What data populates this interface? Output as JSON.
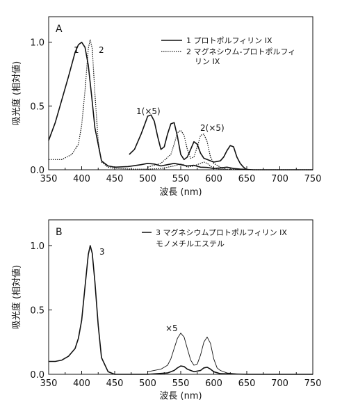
{
  "chart_data": [
    {
      "panel": "A",
      "type": "line",
      "xlabel": "波長 (nm)",
      "ylabel": "吸光度 (相対値)",
      "xlim": [
        350,
        750
      ],
      "ylim": [
        0,
        1.2
      ],
      "xticks": [
        "350",
        "400",
        "450",
        "500",
        "550",
        "600",
        "650",
        "700",
        "750"
      ],
      "yticks": [
        "0.0",
        "0.5",
        "1.0"
      ],
      "legend_position": "top-right",
      "legend": [
        "1 プロトポルフィリン IX",
        "2 マグネシウム-プロトポルフィリン IX"
      ],
      "series": [
        {
          "name": "1 プロトポルフィリン IX",
          "style": "solid",
          "x": [
            350,
            360,
            370,
            380,
            390,
            395,
            400,
            405,
            410,
            415,
            420,
            430,
            440,
            450,
            470,
            490,
            500,
            510,
            520,
            530,
            540,
            550,
            560,
            570,
            580,
            590,
            600,
            610,
            620,
            630,
            640,
            660,
            700,
            750
          ],
          "y": [
            0.23,
            0.37,
            0.55,
            0.73,
            0.92,
            0.98,
            1.0,
            0.96,
            0.82,
            0.58,
            0.33,
            0.07,
            0.03,
            0.02,
            0.025,
            0.04,
            0.05,
            0.045,
            0.03,
            0.04,
            0.05,
            0.04,
            0.03,
            0.035,
            0.02,
            0.018,
            0.01,
            0.015,
            0.02,
            0.01,
            0.005,
            0.0,
            0.0,
            0.0
          ]
        },
        {
          "name": "2 マグネシウム-プロトポルフィリン IX",
          "style": "dotted",
          "x": [
            350,
            370,
            385,
            395,
            400,
            405,
            410,
            413,
            416,
            420,
            425,
            430,
            440,
            450,
            480,
            500,
            520,
            540,
            550,
            555,
            560,
            570,
            580,
            585,
            590,
            600,
            610,
            650,
            700,
            750
          ],
          "y": [
            0.08,
            0.08,
            0.12,
            0.2,
            0.35,
            0.62,
            0.95,
            1.02,
            0.95,
            0.6,
            0.22,
            0.06,
            0.02,
            0.01,
            0.005,
            0.005,
            0.01,
            0.03,
            0.045,
            0.04,
            0.02,
            0.03,
            0.05,
            0.06,
            0.05,
            0.01,
            0.005,
            0.0,
            0.0,
            0.0
          ]
        },
        {
          "name": "1(×5)",
          "style": "solid",
          "x": [
            472,
            480,
            490,
            495,
            500,
            505,
            510,
            515,
            520,
            525,
            530,
            535,
            540,
            545,
            550,
            555,
            560,
            565,
            570,
            575,
            580,
            585,
            590,
            600,
            610,
            615,
            620,
            625,
            630,
            635,
            640,
            645,
            650
          ],
          "y": [
            0.12,
            0.16,
            0.28,
            0.35,
            0.42,
            0.43,
            0.38,
            0.26,
            0.16,
            0.18,
            0.28,
            0.36,
            0.37,
            0.26,
            0.12,
            0.08,
            0.1,
            0.16,
            0.22,
            0.2,
            0.13,
            0.09,
            0.08,
            0.06,
            0.07,
            0.1,
            0.15,
            0.19,
            0.18,
            0.1,
            0.05,
            0.02,
            0.0
          ]
        },
        {
          "name": "2(×5)",
          "style": "dotted",
          "x": [
            500,
            520,
            535,
            540,
            545,
            550,
            555,
            560,
            565,
            570,
            575,
            580,
            585,
            590,
            595,
            600,
            610,
            620
          ],
          "y": [
            0.02,
            0.05,
            0.12,
            0.2,
            0.29,
            0.31,
            0.27,
            0.16,
            0.09,
            0.1,
            0.18,
            0.27,
            0.28,
            0.22,
            0.1,
            0.05,
            0.02,
            0.0
          ]
        }
      ],
      "annotations": [
        "1",
        "2",
        "1(×5)",
        "2(×5)"
      ]
    },
    {
      "panel": "B",
      "type": "line",
      "xlabel": "波長 (nm)",
      "ylabel": "吸光度 (相対値)",
      "xlim": [
        350,
        750
      ],
      "ylim": [
        0,
        1.2
      ],
      "xticks": [
        "350",
        "400",
        "450",
        "500",
        "550",
        "600",
        "650",
        "700",
        "750"
      ],
      "yticks": [
        "0.0",
        "0.5",
        "1.0"
      ],
      "legend_position": "top-right",
      "legend": [
        "3 マグネシウムプロトポルフィリン IX",
        "モノメチルエステル"
      ],
      "series": [
        {
          "name": "3 マグネシウムプロトポルフィリン IX モノメチルエステル",
          "style": "solid",
          "x": [
            350,
            360,
            370,
            380,
            390,
            395,
            400,
            405,
            410,
            413,
            416,
            420,
            425,
            430,
            440,
            450,
            500,
            530,
            540,
            545,
            550,
            555,
            560,
            570,
            580,
            585,
            590,
            595,
            600,
            610,
            650,
            700,
            750
          ],
          "y": [
            0.1,
            0.1,
            0.11,
            0.14,
            0.2,
            0.28,
            0.42,
            0.68,
            0.93,
            1.0,
            0.94,
            0.72,
            0.38,
            0.13,
            0.02,
            0.0,
            0.0,
            0.01,
            0.03,
            0.05,
            0.065,
            0.06,
            0.04,
            0.02,
            0.03,
            0.05,
            0.055,
            0.04,
            0.02,
            0.005,
            0.0,
            0.0,
            0.0
          ]
        },
        {
          "name": "×5",
          "style": "thin",
          "x": [
            500,
            520,
            530,
            535,
            540,
            545,
            550,
            555,
            560,
            565,
            570,
            575,
            580,
            585,
            590,
            595,
            600,
            605,
            610,
            620,
            640
          ],
          "y": [
            0.02,
            0.04,
            0.07,
            0.12,
            0.2,
            0.28,
            0.32,
            0.29,
            0.2,
            0.11,
            0.07,
            0.08,
            0.15,
            0.25,
            0.29,
            0.24,
            0.12,
            0.05,
            0.03,
            0.01,
            0.0
          ]
        }
      ],
      "annotations": [
        "3",
        "×5"
      ]
    }
  ]
}
